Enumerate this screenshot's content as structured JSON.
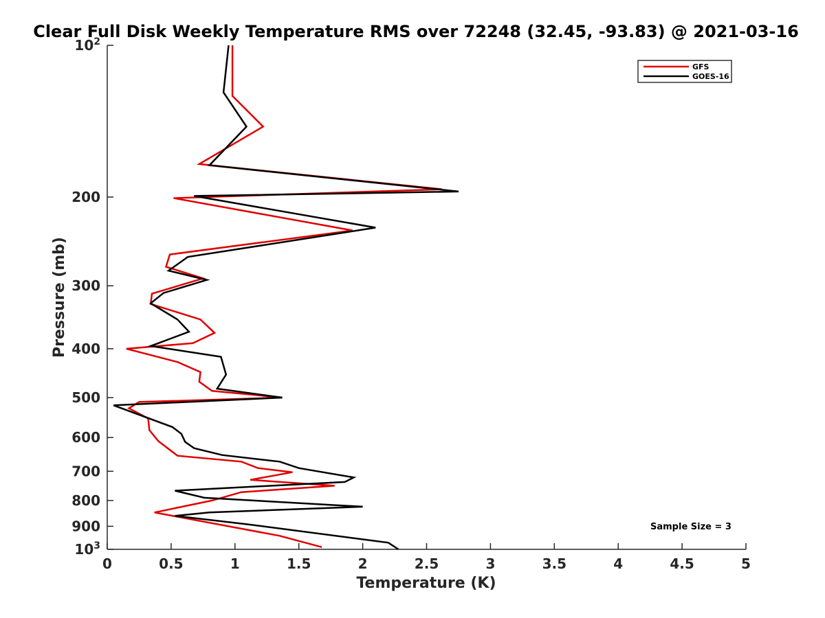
{
  "chart_data": {
    "type": "line",
    "title": "Clear Full Disk Weekly Temperature RMS over 72248 (32.45, -93.83) @ 2021-03-16",
    "xlabel": "Temperature (K)",
    "ylabel": "Pressure (mb)",
    "xlim": [
      0,
      5
    ],
    "ylim": [
      100,
      1000
    ],
    "y_scale": "log",
    "y_reversed": true,
    "grid": false,
    "legend_position": "top-right",
    "x_ticks": [
      0,
      0.5,
      1,
      1.5,
      2,
      2.5,
      3,
      3.5,
      4,
      4.5,
      5
    ],
    "x_tick_labels": [
      "0",
      "0.5",
      "1",
      "1.5",
      "2",
      "2.5",
      "3",
      "3.5",
      "4",
      "4.5",
      "5"
    ],
    "y_ticks": [
      100,
      200,
      300,
      400,
      500,
      600,
      700,
      800,
      900,
      1000
    ],
    "y_tick_labels": [
      {
        "base": "10",
        "exp": "2"
      },
      {
        "base": "200"
      },
      {
        "base": "300"
      },
      {
        "base": "400"
      },
      {
        "base": "500"
      },
      {
        "base": "600"
      },
      {
        "base": "700"
      },
      {
        "base": "800"
      },
      {
        "base": "900"
      },
      {
        "base": "10",
        "exp": "3"
      }
    ],
    "series": [
      {
        "name": "GFS",
        "color": "#e00000",
        "x": [
          0.98,
          0.98,
          1.22,
          0.72,
          2.62,
          0.52,
          1.92,
          0.49,
          0.46,
          0.75,
          0.35,
          0.34,
          0.73,
          0.84,
          0.67,
          0.15,
          0.55,
          0.73,
          0.72,
          0.82,
          1.37,
          0.25,
          0.17,
          0.32,
          0.33,
          0.4,
          0.55,
          1.05,
          1.18,
          1.45,
          1.12,
          1.78,
          1.05,
          0.82,
          0.37,
          1.35,
          1.68
        ],
        "y": [
          100,
          126,
          145,
          172,
          193,
          201,
          233,
          260,
          275,
          290,
          311,
          326,
          350,
          372,
          390,
          400,
          425,
          445,
          465,
          485,
          500,
          510,
          525,
          550,
          580,
          610,
          652,
          670,
          690,
          703,
          728,
          748,
          770,
          800,
          845,
          940,
          990
        ]
      },
      {
        "name": "GOES-16",
        "color": "#000000",
        "x": [
          0.95,
          0.91,
          1.09,
          0.8,
          2.75,
          0.68,
          2.1,
          0.63,
          0.48,
          0.78,
          0.44,
          0.34,
          0.55,
          0.64,
          0.4,
          0.34,
          0.89,
          0.93,
          0.86,
          1.37,
          0.05,
          0.51,
          0.58,
          0.61,
          0.68,
          0.9,
          1.35,
          1.5,
          1.93,
          1.86,
          0.53,
          0.76,
          2.0,
          0.8,
          0.53,
          1.1,
          2.2,
          2.28
        ],
        "y": [
          100,
          124,
          145,
          173,
          195,
          199,
          230,
          263,
          280,
          292,
          310,
          325,
          350,
          370,
          390,
          395,
          415,
          450,
          480,
          500,
          518,
          572,
          590,
          612,
          630,
          650,
          670,
          690,
          720,
          735,
          765,
          790,
          823,
          845,
          858,
          892,
          970,
          1000
        ]
      }
    ],
    "annotation": "Sample Size = 3"
  }
}
